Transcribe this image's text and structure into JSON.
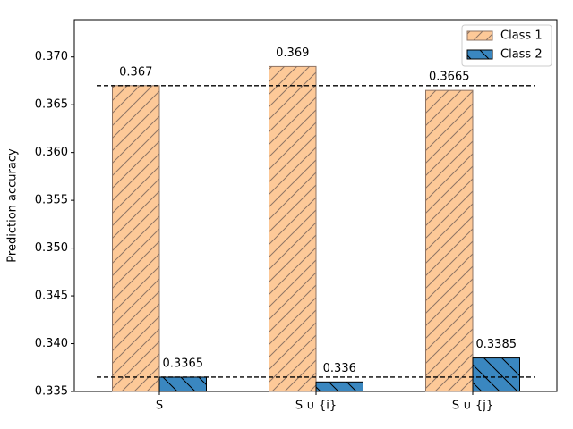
{
  "chart_data": {
    "type": "bar",
    "y_label": "Prediction accuracy",
    "categories": [
      "S",
      "S ∪ {i}",
      "S ∪ {j}"
    ],
    "series": [
      {
        "name": "Class 1",
        "color": "#fdc998",
        "edge_color": "#8e7464",
        "hatch": "/",
        "values": [
          0.367,
          0.369,
          0.3665
        ]
      },
      {
        "name": "Class 2",
        "color": "#3a87c0",
        "edge_color": "#000000",
        "hatch": "\\",
        "values": [
          0.3365,
          0.336,
          0.3385
        ]
      }
    ],
    "hlines": [
      0.367,
      0.3365
    ],
    "ylim": [
      0.335,
      0.3739
    ],
    "yticks": [
      0.335,
      {
        "value": 0.34,
        "label": "0.340"
      },
      0.345,
      {
        "value": 0.35,
        "label": "0.350"
      },
      0.355,
      {
        "value": 0.36,
        "label": "0.360"
      },
      0.365,
      {
        "value": 0.37,
        "label": "0.370"
      }
    ],
    "legend": "upper right"
  }
}
